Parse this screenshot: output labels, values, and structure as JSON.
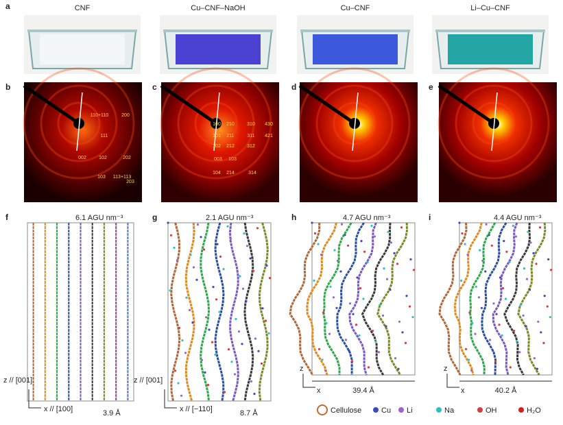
{
  "photos": {
    "label": "a",
    "titles": [
      "CNF",
      "Cu–CNF–NaOH",
      "Cu–CNF",
      "Li–Cu–CNF"
    ]
  },
  "diffraction": [
    {
      "label": "b",
      "reflections": [
        "110+110",
        "200",
        "111",
        "002",
        "102",
        "202",
        "103",
        "113+113",
        "203"
      ]
    },
    {
      "label": "c",
      "reflections": [
        "100",
        "210",
        "310",
        "430",
        "101",
        "211",
        "311",
        "421",
        "102",
        "212",
        "312",
        "003",
        "103",
        "104",
        "214",
        "314"
      ]
    },
    {
      "label": "d"
    },
    {
      "label": "e"
    }
  ],
  "models": [
    {
      "label": "f",
      "density": "6.1 AGU nm⁻³",
      "axis_z": "z // [001]",
      "axis_x": "x // [100]",
      "spacing": "3.9 Å"
    },
    {
      "label": "g",
      "density": "2.1 AGU nm⁻³",
      "axis_z": "z // [001]",
      "axis_x": "x // [−110]",
      "spacing": "8.7 Å"
    },
    {
      "label": "h",
      "density": "4.7 AGU nm⁻³",
      "axis_z": "z",
      "axis_x": "x",
      "spacing": "39.4 Å"
    },
    {
      "label": "i",
      "density": "4.4 AGU nm⁻³",
      "axis_z": "z",
      "axis_x": "x",
      "spacing": "40.2 Å"
    }
  ],
  "legend": [
    "Cellulose",
    "Cu",
    "Li",
    "Na",
    "OH",
    "H₂O"
  ]
}
